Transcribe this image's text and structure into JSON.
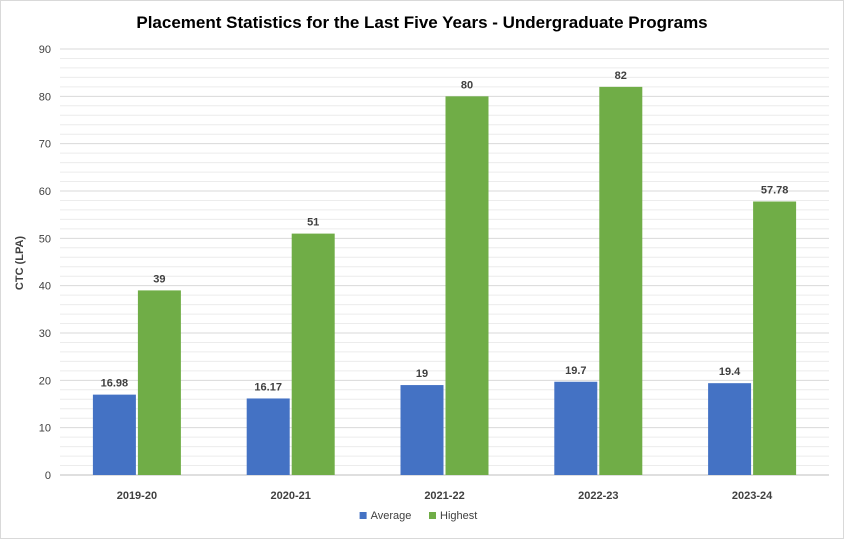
{
  "chart_data": {
    "type": "bar",
    "title": "Placement Statistics for the Last Five Years - Undergraduate Programs",
    "xlabel": "",
    "ylabel": "CTC (LPA)",
    "categories": [
      "2019-20",
      "2020-21",
      "2021-22",
      "2022-23",
      "2023-24"
    ],
    "series": [
      {
        "name": "Average",
        "color": "#4472c4",
        "values": [
          16.98,
          16.17,
          19,
          19.7,
          19.4
        ]
      },
      {
        "name": "Highest",
        "color": "#70ad47",
        "values": [
          39,
          51,
          80,
          82,
          57.78
        ]
      }
    ],
    "ylim": [
      0,
      90
    ],
    "yticks": [
      0,
      10,
      20,
      30,
      40,
      50,
      60,
      70,
      80,
      90
    ],
    "grid": true,
    "legend": "bottom"
  }
}
